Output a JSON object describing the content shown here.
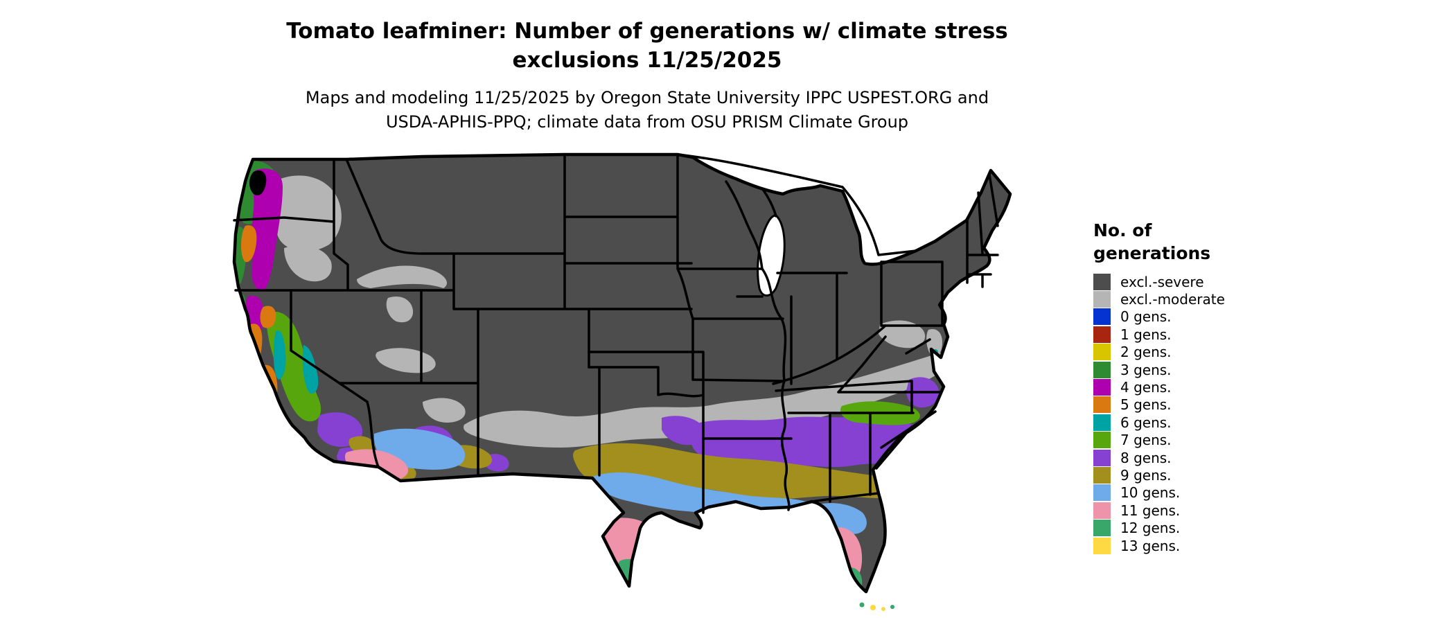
{
  "header": {
    "title_line1": "Tomato leafminer: Number of generations w/ climate stress",
    "title_line2": "exclusions 11/25/2025",
    "subtitle_line1": "Maps and modeling 11/25/2025 by Oregon State University IPPC USPEST.ORG and",
    "subtitle_line2": "USDA-APHIS-PPQ; climate data from OSU PRISM Climate Group"
  },
  "legend": {
    "title_line1": "No. of",
    "title_line2": "generations",
    "items": [
      {
        "label": "excl.-severe",
        "color": "#4d4d4d"
      },
      {
        "label": "excl.-moderate",
        "color": "#b5b5b5"
      },
      {
        "label": "0 gens.",
        "color": "#0533d1"
      },
      {
        "label": "1 gens.",
        "color": "#a8250f"
      },
      {
        "label": "2 gens.",
        "color": "#d9c400"
      },
      {
        "label": "3 gens.",
        "color": "#2e8b31"
      },
      {
        "label": "4 gens.",
        "color": "#ae00ae"
      },
      {
        "label": "5 gens.",
        "color": "#db7911"
      },
      {
        "label": "6 gens.",
        "color": "#00a3a3"
      },
      {
        "label": "7 gens.",
        "color": "#57a60e"
      },
      {
        "label": "8 gens.",
        "color": "#8641d3"
      },
      {
        "label": "9 gens.",
        "color": "#a28f1e"
      },
      {
        "label": "10 gens.",
        "color": "#6fabeb"
      },
      {
        "label": "11 gens.",
        "color": "#ef93aa"
      },
      {
        "label": "12 gens.",
        "color": "#38a769"
      },
      {
        "label": "13 gens.",
        "color": "#fed944"
      }
    ]
  },
  "map": {
    "region": "Continental United States",
    "style": "raster choropleth with black state borders on white background",
    "border_color": "#000000",
    "background_color": "#ffffff"
  }
}
